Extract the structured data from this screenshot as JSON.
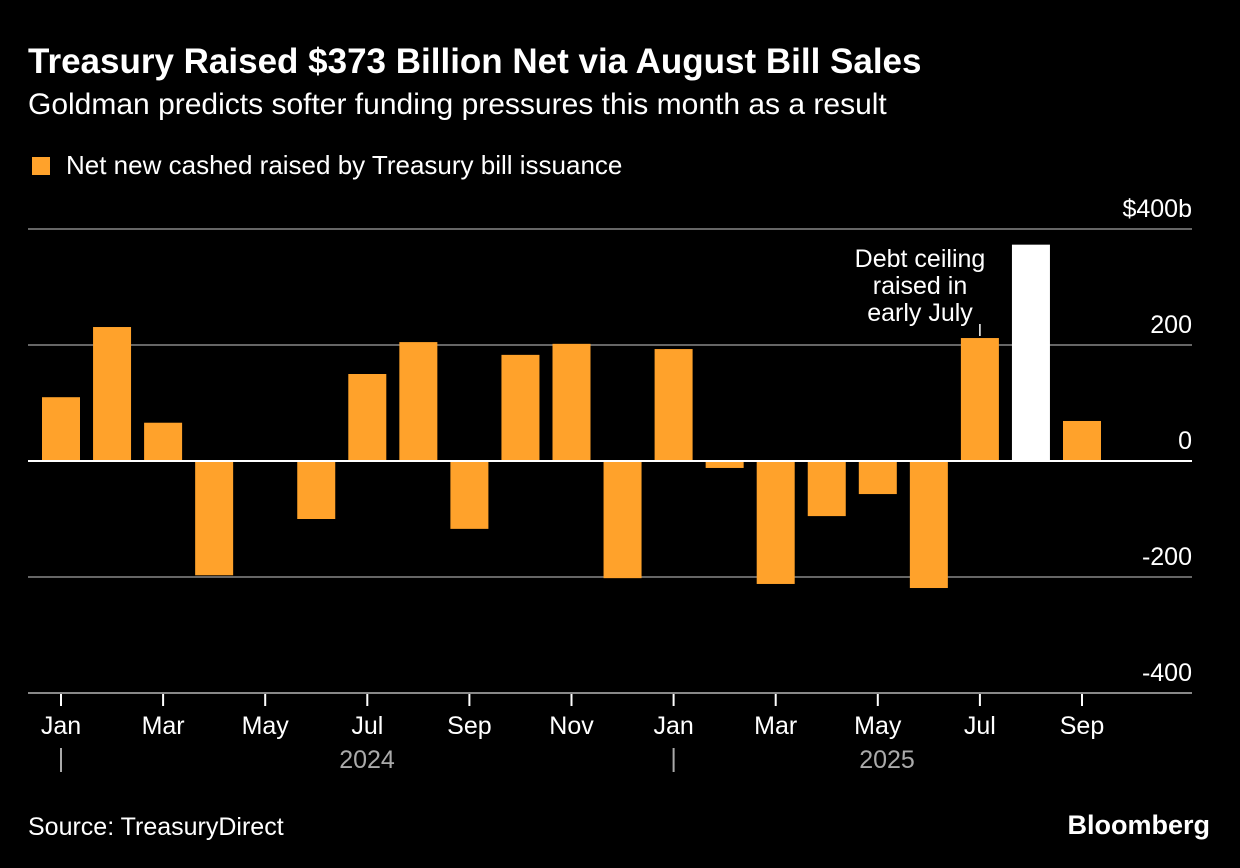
{
  "title": "Treasury Raised $373 Billion Net via August Bill Sales",
  "subtitle": "Goldman predicts softer funding pressures this month as a result",
  "source": "Source: TreasuryDirect",
  "brand": "Bloomberg",
  "chart_data": {
    "type": "bar",
    "legend": [
      {
        "name": "Net new cashed raised by Treasury bill issuance",
        "color": "#ffa22b"
      }
    ],
    "categories": [
      "Jan 2024",
      "Feb 2024",
      "Mar 2024",
      "Apr 2024",
      "May 2024",
      "Jun 2024",
      "Jul 2024",
      "Aug 2024",
      "Sep 2024",
      "Oct 2024",
      "Nov 2024",
      "Dec 2024",
      "Jan 2025",
      "Feb 2025",
      "Mar 2025",
      "Apr 2025",
      "May 2025",
      "Jun 2025",
      "Jul 2025",
      "Aug 2025",
      "Sep 2025"
    ],
    "values": [
      110,
      231,
      66,
      -197,
      0,
      -100,
      150,
      205,
      -117,
      183,
      202,
      -202,
      193,
      -12,
      -212,
      -95,
      -57,
      -219,
      212,
      373,
      69
    ],
    "highlight": {
      "index": 19,
      "color": "#ffffff"
    },
    "bar_color": "#ffa22b",
    "ylim": [
      -400,
      400
    ],
    "y_ticks": [
      {
        "value": 400,
        "label": "$400b"
      },
      {
        "value": 200,
        "label": "200"
      },
      {
        "value": 0,
        "label": "0"
      },
      {
        "value": -200,
        "label": "-200"
      },
      {
        "value": -400,
        "label": "-400"
      }
    ],
    "x_tick_labels": [
      {
        "index": 0,
        "label": "Jan"
      },
      {
        "index": 2,
        "label": "Mar"
      },
      {
        "index": 4,
        "label": "May"
      },
      {
        "index": 6,
        "label": "Jul"
      },
      {
        "index": 8,
        "label": "Sep"
      },
      {
        "index": 10,
        "label": "Nov"
      },
      {
        "index": 12,
        "label": "Jan"
      },
      {
        "index": 14,
        "label": "Mar"
      },
      {
        "index": 16,
        "label": "May"
      },
      {
        "index": 18,
        "label": "Jul"
      },
      {
        "index": 20,
        "label": "Sep"
      }
    ],
    "year_labels": [
      "2024",
      "2025"
    ],
    "annotation": {
      "index": 18,
      "lines": [
        "Debt ceiling",
        "raised in",
        "early July"
      ]
    },
    "grid": true
  }
}
